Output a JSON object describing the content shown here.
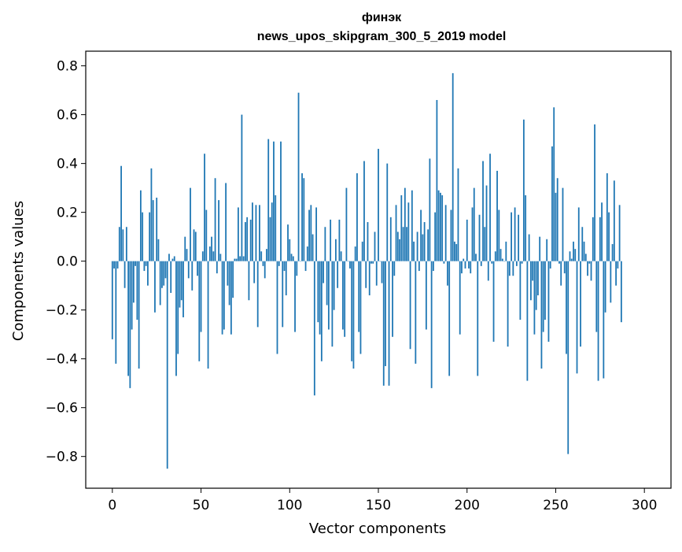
{
  "chart_data": {
    "type": "bar",
    "title": "финэк",
    "subtitle": "news_upos_skipgram_300_5_2019 model",
    "xlabel": "Vector components",
    "ylabel": "Components values",
    "xlim": [
      -15,
      315
    ],
    "ylim": [
      -0.93,
      0.86
    ],
    "xticks": [
      0,
      50,
      100,
      150,
      200,
      250,
      300
    ],
    "yticks": [
      -0.8,
      -0.6,
      -0.4,
      -0.2,
      0.0,
      0.2,
      0.4,
      0.6,
      0.8
    ],
    "ytick_labels": [
      "−0.8",
      "−0.6",
      "−0.4",
      "−0.2",
      "0.0",
      "0.2",
      "0.4",
      "0.6",
      "0.8"
    ],
    "xtick_labels": [
      "0",
      "50",
      "100",
      "150",
      "200",
      "250",
      "300"
    ],
    "bar_color": "#1f77b4",
    "grid": false,
    "values": [
      -0.32,
      -0.03,
      -0.42,
      -0.03,
      0.14,
      0.39,
      0.13,
      -0.11,
      0.14,
      -0.47,
      -0.52,
      -0.28,
      -0.17,
      -0.02,
      -0.24,
      -0.44,
      0.29,
      0.2,
      -0.04,
      -0.02,
      -0.1,
      0.2,
      0.38,
      0.25,
      -0.21,
      0.26,
      0.09,
      -0.18,
      -0.11,
      -0.1,
      -0.07,
      -0.85,
      0.03,
      -0.13,
      0.01,
      0.02,
      -0.47,
      -0.38,
      -0.19,
      -0.16,
      -0.23,
      0.1,
      0.05,
      -0.07,
      0.3,
      -0.12,
      0.13,
      0.12,
      -0.06,
      -0.41,
      -0.29,
      0.04,
      0.44,
      0.21,
      -0.44,
      0.06,
      0.1,
      0.04,
      0.34,
      -0.05,
      0.25,
      0.03,
      -0.3,
      -0.28,
      0.32,
      -0.1,
      -0.18,
      -0.3,
      -0.15,
      0.01,
      0.01,
      0.22,
      0.02,
      0.6,
      0.02,
      0.16,
      0.18,
      -0.16,
      0.17,
      0.24,
      -0.09,
      0.23,
      -0.27,
      0.23,
      0.04,
      -0.02,
      -0.07,
      0.05,
      0.5,
      0.18,
      0.24,
      0.49,
      0.27,
      -0.38,
      -0.02,
      0.49,
      -0.27,
      -0.04,
      -0.14,
      0.15,
      0.09,
      0.03,
      0.02,
      -0.29,
      -0.06,
      0.69,
      0.0,
      0.36,
      0.34,
      -0.04,
      0.06,
      0.21,
      0.23,
      0.11,
      -0.55,
      0.22,
      -0.25,
      -0.3,
      -0.41,
      -0.09,
      0.14,
      -0.18,
      -0.28,
      0.17,
      -0.35,
      -0.2,
      0.09,
      -0.11,
      0.17,
      0.04,
      -0.28,
      -0.31,
      0.3,
      0.0,
      -0.03,
      -0.41,
      -0.44,
      0.06,
      0.36,
      -0.29,
      -0.38,
      0.08,
      0.41,
      -0.11,
      0.16,
      -0.14,
      -0.01,
      -0.01,
      0.12,
      -0.1,
      0.46,
      0.0,
      -0.09,
      -0.51,
      -0.43,
      0.4,
      -0.51,
      0.18,
      -0.31,
      -0.06,
      0.23,
      0.12,
      0.09,
      0.27,
      0.14,
      0.3,
      0.14,
      0.24,
      -0.36,
      0.29,
      0.08,
      -0.42,
      0.12,
      -0.04,
      0.21,
      0.11,
      0.16,
      -0.28,
      0.13,
      0.42,
      -0.52,
      -0.04,
      0.2,
      0.66,
      0.29,
      0.28,
      0.27,
      -0.01,
      0.23,
      -0.1,
      -0.47,
      0.21,
      0.77,
      0.08,
      0.07,
      0.38,
      -0.3,
      -0.05,
      0.01,
      -0.03,
      0.17,
      -0.03,
      -0.05,
      0.22,
      0.3,
      0.03,
      -0.47,
      0.19,
      -0.02,
      0.41,
      0.14,
      0.31,
      -0.08,
      0.44,
      -0.01,
      -0.33,
      0.04,
      0.37,
      0.21,
      0.05,
      0.01,
      0.0,
      0.08,
      -0.35,
      -0.06,
      0.2,
      -0.06,
      0.22,
      -0.02,
      0.19,
      -0.24,
      -0.01,
      0.58,
      0.27,
      -0.49,
      0.11,
      -0.16,
      -0.08,
      -0.3,
      -0.2,
      -0.14,
      0.1,
      -0.44,
      -0.29,
      -0.24,
      0.09,
      -0.33,
      -0.03,
      0.47,
      0.63,
      0.28,
      0.34,
      -0.01,
      -0.1,
      0.3,
      -0.05,
      -0.38,
      -0.79,
      0.04,
      0.01,
      0.08,
      0.05,
      -0.46,
      0.22,
      -0.35,
      0.14,
      0.08,
      0.03,
      -0.06,
      -0.01,
      -0.08,
      0.18,
      0.56,
      -0.29,
      -0.49,
      0.18,
      0.24,
      -0.48,
      -0.21,
      0.36,
      0.2,
      -0.17,
      0.07,
      0.33,
      -0.1,
      -0.03,
      0.23,
      -0.25
    ]
  }
}
